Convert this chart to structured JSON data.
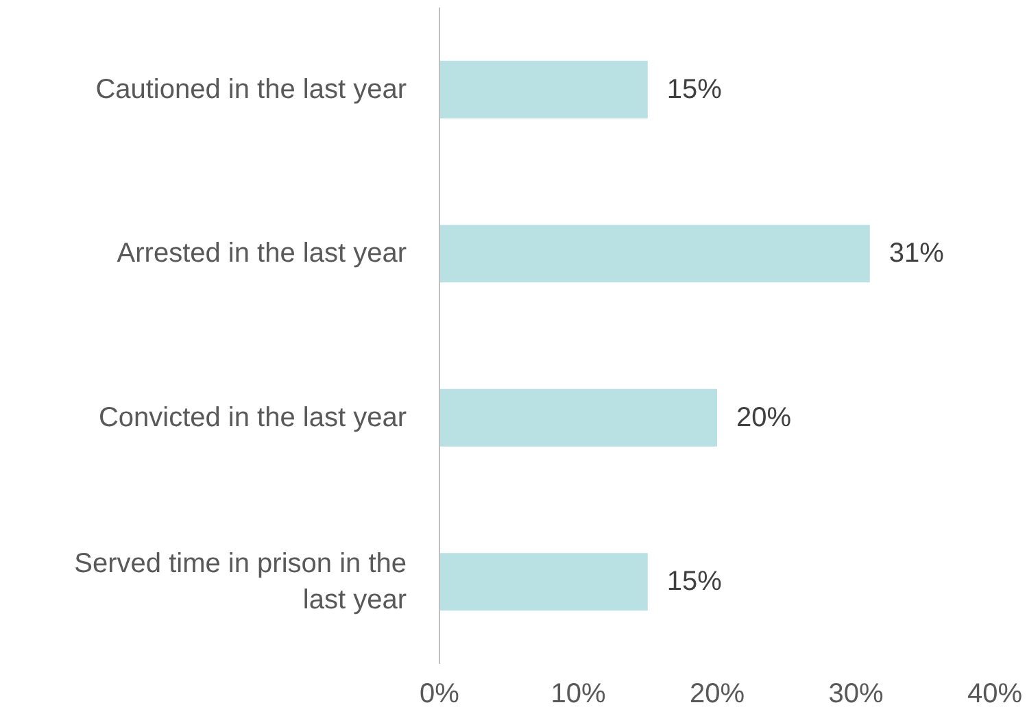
{
  "chart_data": {
    "type": "bar",
    "orientation": "horizontal",
    "categories": [
      "Cautioned in the last year",
      "Arrested in the last year",
      "Convicted in the last year",
      "Served time in prison in the last year"
    ],
    "values": [
      15,
      31,
      20,
      15
    ],
    "value_labels": [
      "15%",
      "31%",
      "20%",
      "15%"
    ],
    "color": "#b9e0e3",
    "xlim": [
      0,
      40
    ],
    "xticks": [
      {
        "value": 0,
        "label": "0%"
      },
      {
        "value": 10,
        "label": "10%"
      },
      {
        "value": 20,
        "label": "20%"
      },
      {
        "value": 30,
        "label": "30%"
      },
      {
        "value": 40,
        "label": "40%"
      }
    ],
    "grid": false
  }
}
